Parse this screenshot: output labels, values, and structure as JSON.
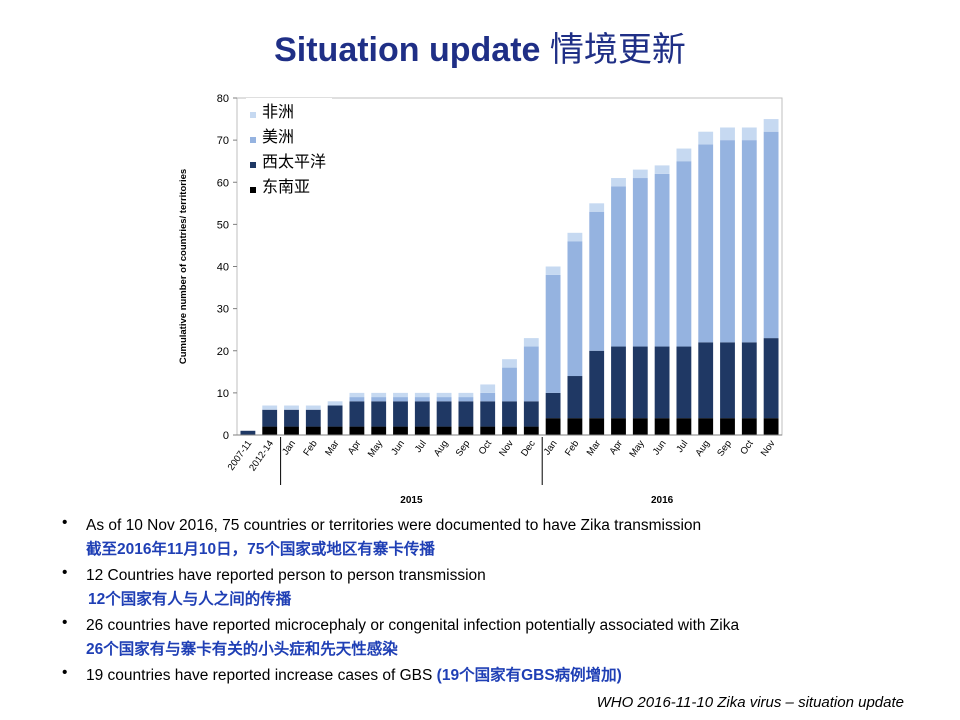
{
  "slide": {
    "title_en": "Situation update",
    "title_zh": "情境更新",
    "footer": "WHO 2016-11-10 Zika virus – situation update"
  },
  "colors": {
    "title": "#1f2f86",
    "zh_text": "#1f3fb5",
    "africa": "#c6d9f1",
    "americas": "#95b3e0",
    "western_pacific": "#1f3864",
    "south_east_asia": "#000000"
  },
  "bullets": [
    {
      "en": "As of 10 Nov 2016, 75 countries or territories were documented to have Zika transmission",
      "zh": "截至2016年11月10日，75个国家或地区有寨卡传播"
    },
    {
      "en": "12 Countries have reported person to person transmission",
      "zh": "12个国家有人与人之间的传播"
    },
    {
      "en": "26 countries have reported microcephaly or congenital infection potentially associated with Zika",
      "zh": "26个国家有与寨卡有关的小头症和先天性感染"
    },
    {
      "en": "19 countries have reported increase cases of GBS ",
      "zh": "(19个国家有GBS病例增加)"
    }
  ],
  "chart_data": {
    "type": "bar",
    "stacked": true,
    "ylabel": "Cumulative number of countries/ territories",
    "ylim": [
      0,
      80
    ],
    "yticks": [
      0,
      10,
      20,
      30,
      40,
      50,
      60,
      70,
      80
    ],
    "grid": false,
    "legend_position": "top-left",
    "categories": [
      "2007-11",
      "2012-14",
      "Jan",
      "Feb",
      "Mar",
      "Apr",
      "May",
      "Jun",
      "Jul",
      "Aug",
      "Sep",
      "Oct",
      "Nov",
      "Dec",
      "Jan",
      "Feb",
      "Mar",
      "Apr",
      "May",
      "Jun",
      "Jul",
      "Aug",
      "Sep",
      "Oct",
      "Nov"
    ],
    "year_groups": [
      {
        "label": "2015",
        "from": 2,
        "to": 13
      },
      {
        "label": "2016",
        "from": 14,
        "to": 24
      }
    ],
    "series": [
      {
        "name": "东南亚",
        "color": "#000000",
        "values": [
          0,
          2,
          2,
          2,
          2,
          2,
          2,
          2,
          2,
          2,
          2,
          2,
          2,
          2,
          4,
          4,
          4,
          4,
          4,
          4,
          4,
          4,
          4,
          4,
          4
        ]
      },
      {
        "name": "西太平洋",
        "color": "#1f3864",
        "values": [
          1,
          4,
          4,
          4,
          5,
          6,
          6,
          6,
          6,
          6,
          6,
          6,
          6,
          6,
          6,
          10,
          16,
          17,
          17,
          17,
          17,
          18,
          18,
          18,
          19
        ]
      },
      {
        "name": "美洲",
        "color": "#95b3e0",
        "values": [
          0,
          0,
          0,
          0,
          0,
          1,
          1,
          1,
          1,
          1,
          1,
          2,
          8,
          13,
          28,
          32,
          33,
          38,
          40,
          41,
          44,
          47,
          48,
          48,
          49
        ]
      },
      {
        "name": "非洲",
        "color": "#c6d9f1",
        "values": [
          0,
          1,
          1,
          1,
          1,
          1,
          1,
          1,
          1,
          1,
          1,
          2,
          2,
          2,
          2,
          2,
          2,
          2,
          2,
          2,
          3,
          3,
          3,
          3,
          3
        ]
      }
    ]
  }
}
